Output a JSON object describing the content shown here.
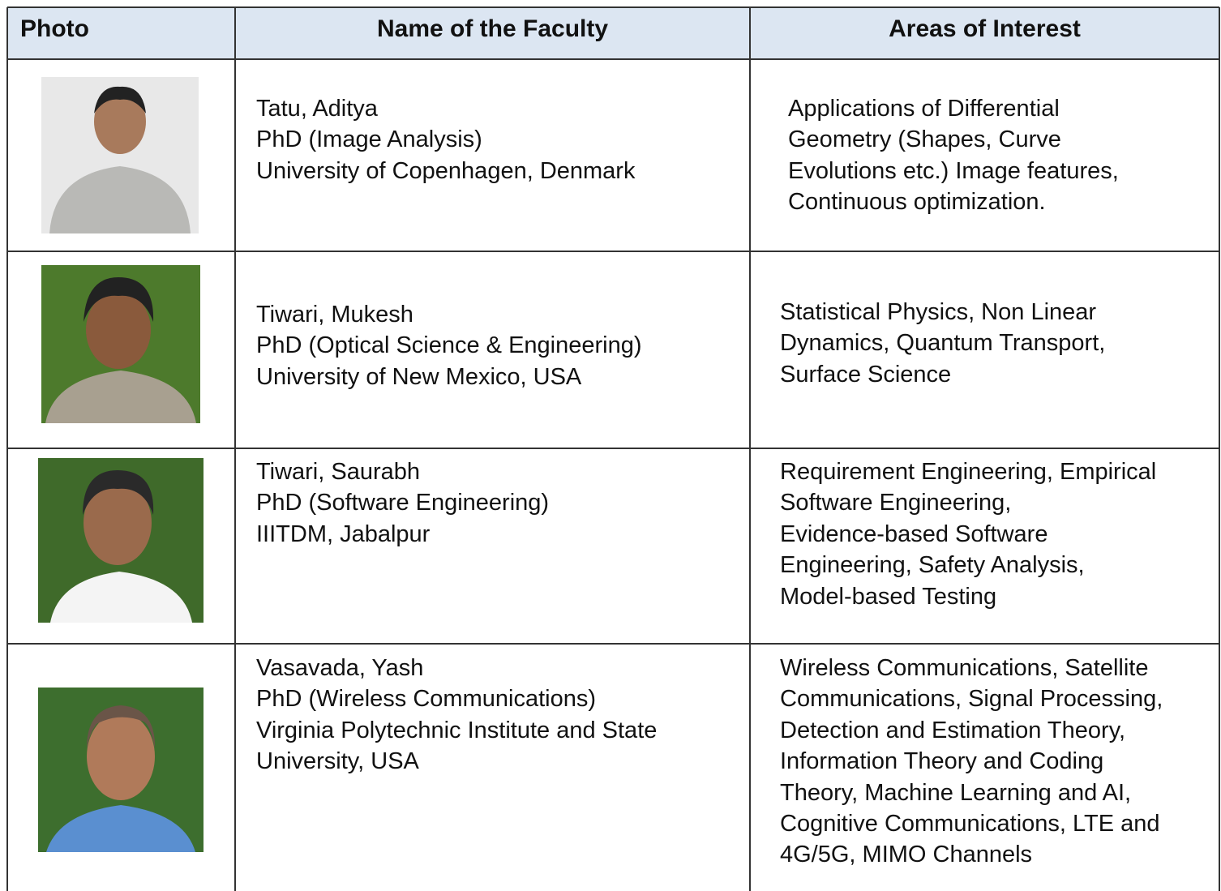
{
  "table": {
    "header": [
      "Photo",
      "Name of the Faculty",
      "Areas of Interest"
    ],
    "rows": [
      {
        "name": "Tatu, Aditya",
        "degree": "PhD (Image Analysis)",
        "institution": "University of Copenhagen, Denmark",
        "areas": [
          "Applications of Differential",
          "Geometry (Shapes, Curve",
          "Evolutions etc.) Image features,",
          "Continuous optimization."
        ]
      },
      {
        "name": "Tiwari, Mukesh",
        "degree": "PhD (Optical Science & Engineering)",
        "institution": "University of New Mexico, USA",
        "areas": [
          "Statistical Physics, Non Linear",
          "Dynamics, Quantum Transport,",
          "Surface Science"
        ]
      },
      {
        "name": "Tiwari, Saurabh",
        "degree": "PhD (Software Engineering)",
        "institution": "IIITDM, Jabalpur",
        "areas": [
          "Requirement Engineering, Empirical",
          "Software Engineering,",
          "Evidence-based Software",
          "Engineering, Safety Analysis,",
          "Model-based Testing"
        ]
      },
      {
        "name": "Vasavada, Yash",
        "degree": "PhD (Wireless Communications)",
        "institution": "Virginia Polytechnic Institute and State University, USA",
        "areas": [
          "Wireless Communications, Satellite",
          "Communications, Signal Processing,",
          "Detection and Estimation Theory,",
          "Information Theory and Coding",
          "Theory, Machine Learning and AI,",
          "Cognitive Communications, LTE and",
          "4G/5G, MIMO Channels"
        ]
      }
    ]
  }
}
